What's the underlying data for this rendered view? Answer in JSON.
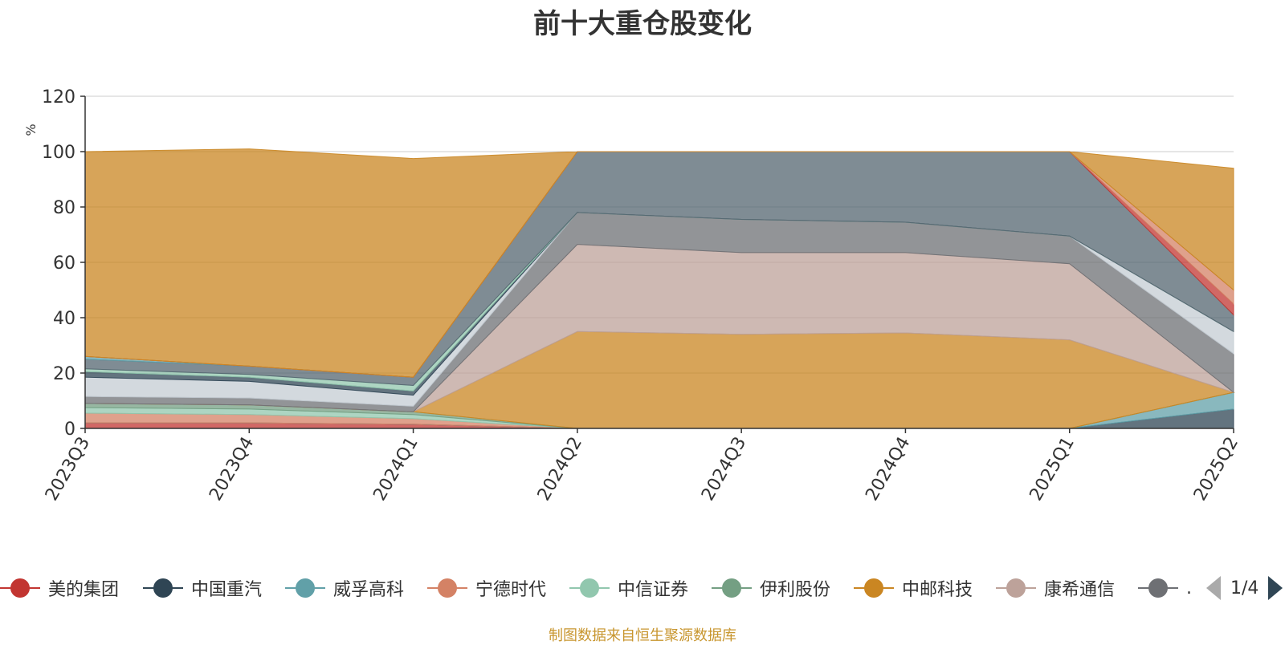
{
  "chart_data": {
    "type": "area",
    "stacked": true,
    "title": "前十大重仓股变化",
    "ylabel": "%",
    "ylim": [
      0,
      120
    ],
    "yticks": [
      0,
      20,
      40,
      60,
      80,
      100,
      120
    ],
    "grid": true,
    "legend_position": "bottom",
    "categories": [
      "2023Q3",
      "2023Q4",
      "2024Q1",
      "2024Q2",
      "2024Q3",
      "2024Q4",
      "2025Q1",
      "2025Q2"
    ],
    "series": [
      {
        "name": "美的集团",
        "color": "#c23531",
        "values": [
          2.0,
          2.0,
          1.5,
          0,
          0,
          0,
          0,
          0
        ]
      },
      {
        "name": "中国重汽",
        "color": "#2f4554",
        "values": [
          0,
          0,
          0,
          0,
          0,
          0,
          0,
          7.0
        ]
      },
      {
        "name": "威孚高科",
        "color": "#61a0a8",
        "values": [
          0,
          0,
          0,
          0,
          0,
          0,
          0,
          6.0
        ]
      },
      {
        "name": "宁德时代",
        "color": "#d48265",
        "values": [
          3.5,
          3.0,
          2.0,
          0,
          0,
          0,
          0,
          0
        ]
      },
      {
        "name": "中信证券",
        "color": "#91c7ae",
        "values": [
          2.0,
          2.0,
          1.5,
          0,
          0,
          0,
          0,
          0
        ]
      },
      {
        "name": "伊利股份",
        "color": "#749f83",
        "values": [
          1.5,
          1.5,
          1.0,
          0,
          0,
          0,
          0,
          0
        ]
      },
      {
        "name": "中邮科技",
        "color": "#ca8622",
        "values": [
          0,
          0,
          0,
          35.0,
          34.0,
          34.5,
          32.0,
          0
        ]
      },
      {
        "name": "康希通信",
        "color": "#bda29a",
        "values": [
          0,
          0,
          0,
          31.5,
          29.5,
          29.0,
          27.5,
          0
        ]
      },
      {
        "name": "",
        "color": "#6e7074",
        "values": [
          2.5,
          2.5,
          2.0,
          11.5,
          12.0,
          11.0,
          10.0,
          14.0
        ]
      },
      {
        "name": "",
        "color": "#c4ccd3",
        "values": [
          7.0,
          6.0,
          4.0,
          0,
          0,
          0,
          0,
          8.0
        ]
      },
      {
        "name": "",
        "color": "#2f4554",
        "values": [
          2.0,
          1.5,
          1.5,
          0,
          0,
          0,
          0,
          0
        ]
      },
      {
        "name": "",
        "color": "#91c7ae",
        "values": [
          1.0,
          1.0,
          2.0,
          0,
          0,
          0,
          0,
          0
        ]
      },
      {
        "name": "",
        "color": "#546570",
        "values": [
          3.5,
          3.0,
          3.0,
          22.0,
          24.5,
          25.5,
          30.5,
          6.0
        ]
      },
      {
        "name": "",
        "color": "#61a0a8",
        "values": [
          1.0,
          0,
          0,
          0,
          0,
          0,
          0,
          0
        ]
      },
      {
        "name": "",
        "color": "#c23531",
        "values": [
          0,
          0,
          0,
          0,
          0,
          0,
          0,
          4.0
        ]
      },
      {
        "name": "",
        "color": "#d48265",
        "values": [
          0,
          0,
          0,
          0,
          0,
          0,
          0,
          5.0
        ]
      },
      {
        "name": "",
        "color": "#ca8622",
        "values": [
          74.0,
          78.5,
          79.0,
          0,
          0,
          0,
          0,
          44.0
        ]
      }
    ]
  },
  "legend": {
    "items": [
      {
        "label": "美的集团",
        "color": "#c23531"
      },
      {
        "label": "中国重汽",
        "color": "#2f4554"
      },
      {
        "label": "威孚高科",
        "color": "#61a0a8"
      },
      {
        "label": "宁德时代",
        "color": "#d48265"
      },
      {
        "label": "中信证券",
        "color": "#91c7ae"
      },
      {
        "label": "伊利股份",
        "color": "#749f83"
      },
      {
        "label": "中邮科技",
        "color": "#ca8622"
      },
      {
        "label": "康希通信",
        "color": "#bda29a"
      },
      {
        "label": ".",
        "color": "#6e7074"
      }
    ],
    "page_indicator": "1/4"
  },
  "footer": {
    "source": "制图数据来自恒生聚源数据库"
  }
}
